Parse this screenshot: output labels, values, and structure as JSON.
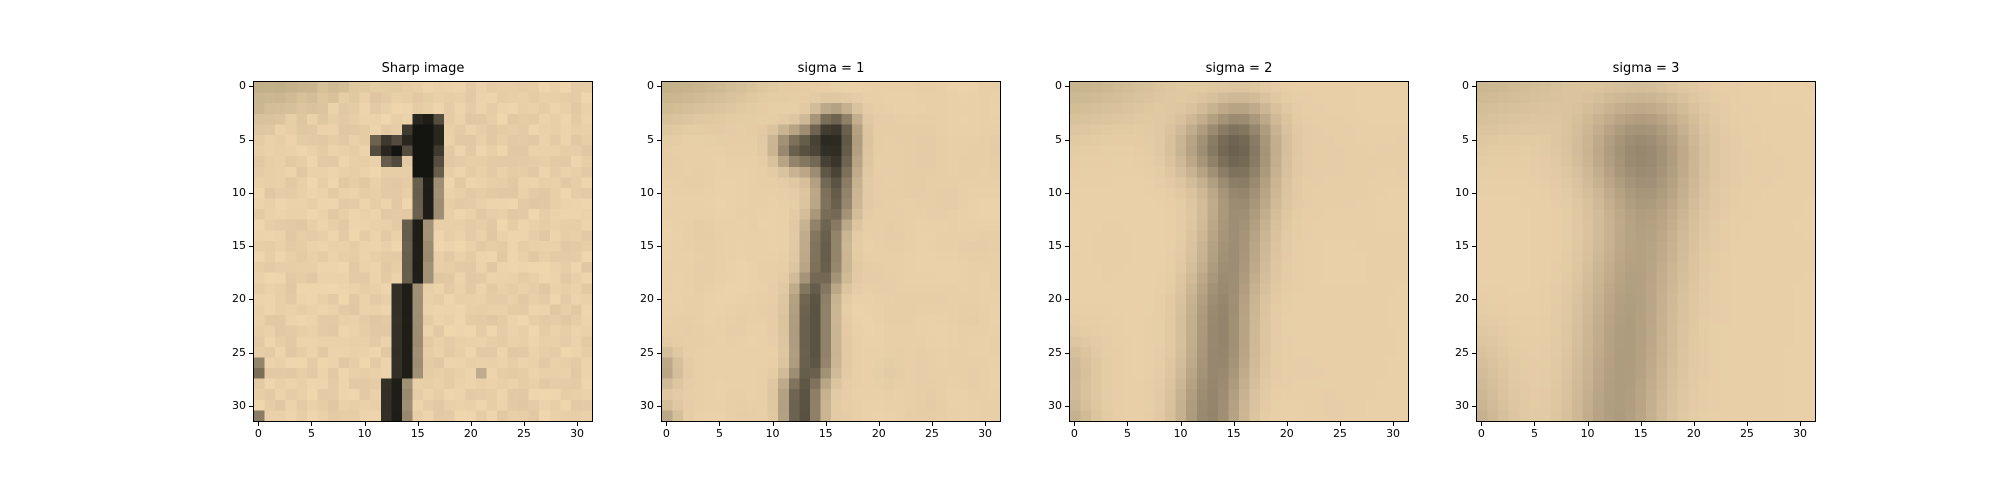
{
  "figure": {
    "panels": [
      {
        "title": "Sharp image",
        "sigma": 0
      },
      {
        "title": "sigma = 1",
        "sigma": 1
      },
      {
        "title": "sigma = 2",
        "sigma": 2
      },
      {
        "title": "sigma = 3",
        "sigma": 3
      }
    ],
    "image_size": [
      32,
      32
    ],
    "x_ticks": [
      "0",
      "5",
      "10",
      "15",
      "20",
      "25",
      "30"
    ],
    "y_ticks": [
      "0",
      "5",
      "10",
      "15",
      "20",
      "25",
      "30"
    ],
    "colors": {
      "background": "#e8cfa8",
      "dark": "#141410",
      "corner": "#a79a72"
    }
  }
}
